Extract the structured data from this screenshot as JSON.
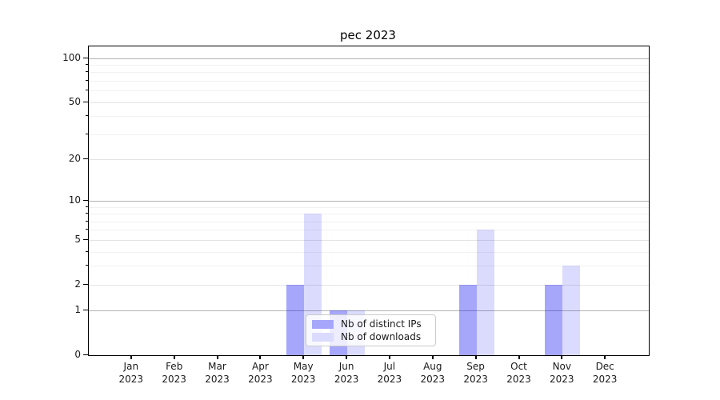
{
  "chart_data": {
    "type": "bar",
    "title": "pec 2023",
    "categories": [
      "Jan 2023",
      "Feb 2023",
      "Mar 2023",
      "Apr 2023",
      "May 2023",
      "Jun 2023",
      "Jul 2023",
      "Aug 2023",
      "Sep 2023",
      "Oct 2023",
      "Nov 2023",
      "Dec 2023"
    ],
    "series": [
      {
        "name": "Nb of distinct IPs",
        "color": "rgba(0,0,240,0.35)",
        "legend_color": "#a6a6fa",
        "values": [
          0,
          0,
          0,
          0,
          2,
          1,
          0,
          0,
          2,
          0,
          2,
          0
        ]
      },
      {
        "name": "Nb of downloads",
        "color": "rgba(0,0,240,0.14)",
        "legend_color": "#dbdbfd",
        "values": [
          0,
          0,
          0,
          0,
          8,
          1,
          0,
          0,
          6,
          0,
          3,
          0
        ]
      }
    ],
    "xlabel": "",
    "ylabel": "",
    "yscale": "log1p",
    "ylim": [
      0,
      120
    ],
    "yticks": [
      0,
      1,
      2,
      5,
      10,
      20,
      50,
      100
    ],
    "ytick_labels": [
      "0",
      "1",
      "2",
      "5",
      "10",
      "20",
      "50",
      "100"
    ],
    "major_grid_values": [
      1,
      10,
      100
    ],
    "mid_grid_values": [
      2,
      5,
      20,
      50
    ],
    "minor_grid_values": [
      3,
      4,
      6,
      7,
      8,
      9,
      30,
      40,
      60,
      70,
      80,
      90
    ],
    "grid": true,
    "legend_position": "lower center"
  }
}
